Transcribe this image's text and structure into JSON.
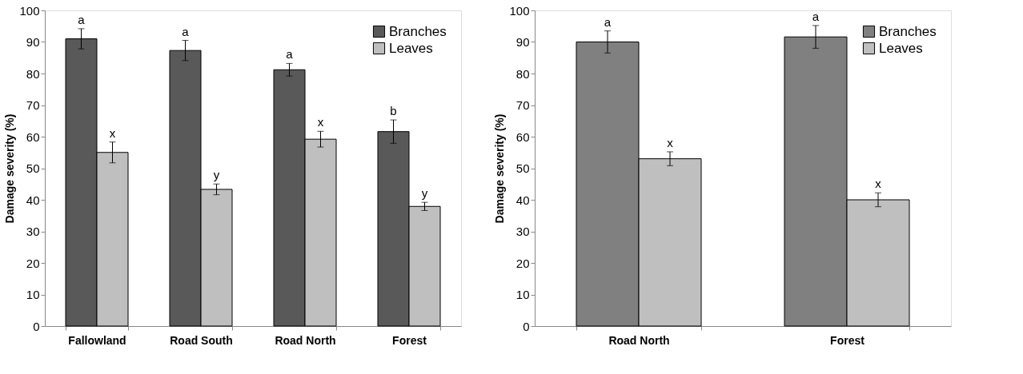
{
  "chart_data": [
    {
      "type": "bar",
      "ylabel": "Damage severity (%)",
      "categories": [
        "Fallowland",
        "Road South",
        "Road North",
        "Forest"
      ],
      "series": [
        {
          "name": "Branches",
          "color": "#595959",
          "values": [
            91,
            87.3,
            81.2,
            61.6
          ],
          "errors": [
            3.2,
            3.2,
            2,
            3.7
          ]
        },
        {
          "name": "Leaves",
          "color": "#bfbfbf",
          "values": [
            55,
            43.3,
            59.2,
            37.9
          ],
          "errors": [
            3.3,
            1.7,
            2.5,
            1.3
          ]
        }
      ],
      "ylim": [
        0,
        100
      ],
      "yticks": [
        0,
        10,
        20,
        30,
        40,
        50,
        60,
        70,
        80,
        90,
        100
      ],
      "grid": false,
      "legend": "top right",
      "annotations": [
        "a",
        "x",
        "a",
        "y",
        "a",
        "x",
        "b",
        "y"
      ]
    },
    {
      "type": "bar",
      "ylabel": "Damage severity (%)",
      "categories": [
        "Road North",
        "Forest"
      ],
      "series": [
        {
          "name": "Branches",
          "color": "#808080",
          "values": [
            90,
            91.6
          ],
          "errors": [
            3.5,
            3.6
          ]
        },
        {
          "name": "Leaves",
          "color": "#bfbfbf",
          "values": [
            53,
            40
          ],
          "errors": [
            2.2,
            2.2
          ]
        }
      ],
      "ylim": [
        0,
        100
      ],
      "yticks": [
        0,
        10,
        20,
        30,
        40,
        50,
        60,
        70,
        80,
        90,
        100
      ],
      "grid": false,
      "legend": "top right",
      "annotations": [
        "a",
        "x",
        "a",
        "x"
      ]
    }
  ]
}
